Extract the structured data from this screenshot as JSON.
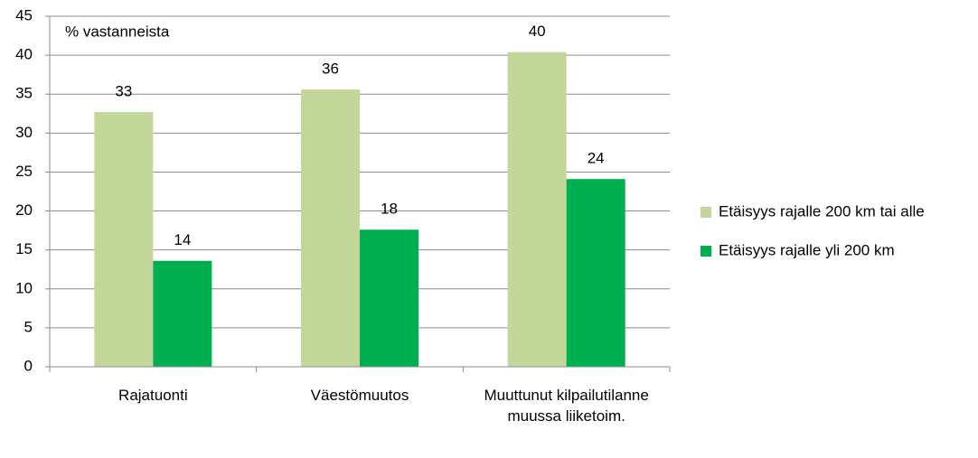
{
  "chart_data": {
    "type": "bar",
    "annotation": "% vastanneista",
    "categories": [
      "Rajatuonti",
      "Väestömuutos",
      "Muuttunut kilpailutilanne muussa liiketoim."
    ],
    "series": [
      {
        "name": "Etäisyys rajalle 200 km tai alle",
        "color": "#c4d79b",
        "values": [
          32.7,
          35.6,
          40.4
        ],
        "value_labels": [
          "33",
          "36",
          "40"
        ]
      },
      {
        "name": "Etäisyys rajalle yli 200 km",
        "color": "#00b050",
        "values": [
          13.6,
          17.6,
          24.1
        ],
        "value_labels": [
          "14",
          "18",
          "24"
        ]
      }
    ],
    "ylim": [
      0,
      45
    ],
    "yticks": [
      0,
      5,
      10,
      15,
      20,
      25,
      30,
      35,
      40,
      45
    ],
    "grid": true,
    "legend": "right"
  }
}
